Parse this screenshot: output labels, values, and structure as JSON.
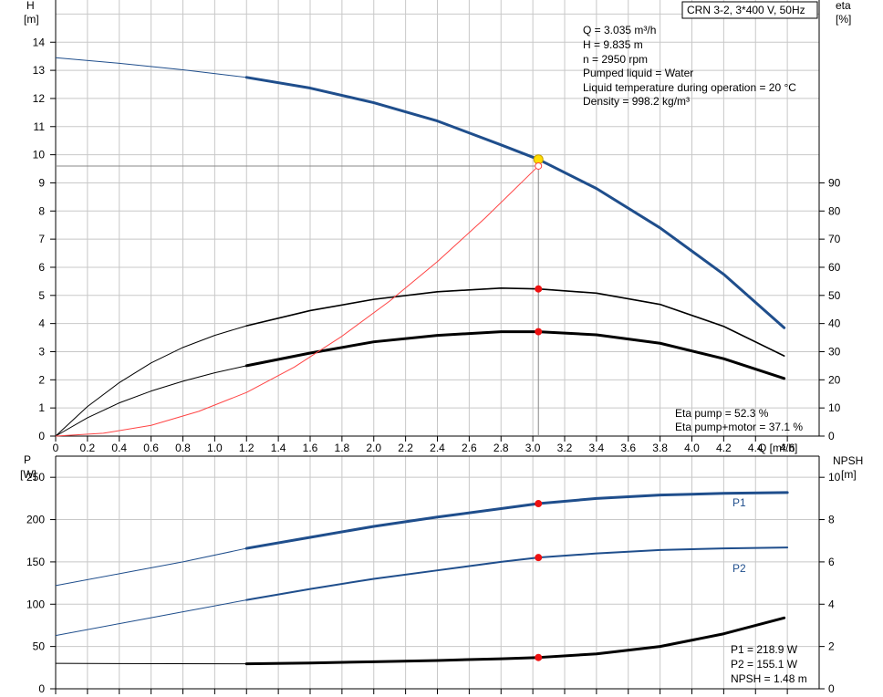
{
  "pump_title": "CRN 3-2, 3*400 V, 50Hz",
  "info_lines": [
    "Q = 3.035 m³/h",
    "H = 9.835 m",
    "n = 2950 rpm",
    "Pumped liquid = Water",
    "Liquid temperature during operation = 20 °C",
    "Density = 998.2 kg/m³"
  ],
  "eta_readout": [
    "Eta pump = 52.3 %",
    "Eta pump+motor = 37.1 %"
  ],
  "power_readout": [
    "P1 = 218.9 W",
    "P2 = 155.1 W",
    "NPSH = 1.48 m"
  ],
  "colors": {
    "head": "#1f4e8c",
    "power": "#1f4e8c",
    "system": "#ff4444",
    "marker": "#ee1111",
    "duty": "#ffdd00",
    "grid": "#c8c8c8"
  },
  "chart_data": [
    {
      "type": "line",
      "axes": {
        "x": {
          "label": "Q [m³/h]",
          "range": [
            0,
            4.8
          ],
          "ticks": [
            "0",
            "0.2",
            "0.4",
            "0.6",
            "0.8",
            "1.0",
            "1.2",
            "1.4",
            "1.6",
            "1.8",
            "2.0",
            "2.2",
            "2.4",
            "2.6",
            "2.8",
            "3.0",
            "3.2",
            "3.4",
            "3.6",
            "3.8",
            "4.0",
            "4.2",
            "4.4",
            "4.6"
          ]
        },
        "y_left": {
          "label": [
            "H",
            "[m]"
          ],
          "range": [
            0,
            15.5
          ],
          "ticks": [
            "0",
            "1",
            "2",
            "3",
            "4",
            "5",
            "6",
            "7",
            "8",
            "9",
            "10",
            "11",
            "12",
            "13",
            "14"
          ]
        },
        "y_right": {
          "label": [
            "eta",
            "[%]"
          ],
          "range": [
            0,
            155
          ],
          "ticks": [
            "0",
            "10",
            "20",
            "30",
            "40",
            "50",
            "60",
            "70",
            "80",
            "90"
          ]
        }
      },
      "grid": true,
      "series": [
        {
          "id": "head",
          "axis": "left",
          "x": [
            0,
            0.4,
            0.8,
            1.2,
            1.6,
            2.0,
            2.4,
            2.8,
            3.035,
            3.4,
            3.8,
            4.2,
            4.58
          ],
          "y": [
            13.45,
            13.25,
            13.02,
            12.75,
            12.37,
            11.85,
            11.2,
            10.35,
            9.835,
            8.8,
            7.4,
            5.75,
            3.85
          ]
        },
        {
          "id": "eta-pump",
          "axis": "right",
          "x": [
            0,
            0.2,
            0.4,
            0.6,
            0.8,
            1.0,
            1.2,
            1.6,
            2.0,
            2.4,
            2.8,
            3.035,
            3.4,
            3.8,
            4.2,
            4.58
          ],
          "y": [
            0,
            10.5,
            19,
            26,
            31.5,
            35.8,
            39.2,
            44.6,
            48.6,
            51.3,
            52.6,
            52.3,
            50.8,
            46.8,
            39,
            28.5
          ]
        },
        {
          "id": "eta-pump-motor",
          "axis": "right",
          "x": [
            0,
            0.2,
            0.4,
            0.6,
            0.8,
            1.0,
            1.2,
            1.6,
            2.0,
            2.4,
            2.8,
            3.035,
            3.4,
            3.8,
            4.2,
            4.58
          ],
          "y": [
            0,
            6.5,
            11.8,
            16,
            19.5,
            22.5,
            25,
            29.5,
            33.5,
            35.8,
            37.1,
            37.1,
            36,
            33,
            27.5,
            20.5
          ]
        },
        {
          "id": "system-curve",
          "axis": "left",
          "x": [
            0,
            0.3,
            0.6,
            0.9,
            1.2,
            1.5,
            1.8,
            2.1,
            2.4,
            2.7,
            3.035
          ],
          "y": [
            0,
            0.1,
            0.38,
            0.88,
            1.55,
            2.45,
            3.55,
            4.8,
            6.2,
            7.75,
            9.6
          ]
        }
      ],
      "markers": [
        {
          "id": "duty-point",
          "x": 3.035,
          "y": 9.835,
          "axis": "left"
        },
        {
          "id": "system-point",
          "x": 3.035,
          "y": 9.6,
          "axis": "left"
        },
        {
          "id": "eta-pump-point",
          "x": 3.035,
          "y": 52.3,
          "axis": "right"
        },
        {
          "id": "eta-pump-motor-point",
          "x": 3.035,
          "y": 37.1,
          "axis": "right"
        }
      ],
      "guides": {
        "q": 3.035,
        "h": 9.6
      }
    },
    {
      "type": "line",
      "axes": {
        "x": {
          "range": [
            0,
            4.8
          ]
        },
        "y_left": {
          "label": [
            "P",
            "[W]"
          ],
          "range": [
            0,
            275
          ],
          "ticks": [
            "0",
            "50",
            "100",
            "150",
            "200",
            "250"
          ]
        },
        "y_right": {
          "label": [
            "NPSH",
            "[m]"
          ],
          "range": [
            0,
            11
          ],
          "ticks": [
            "0",
            "2",
            "4",
            "6",
            "8",
            "10"
          ]
        }
      },
      "grid": true,
      "series": [
        {
          "id": "p1",
          "name": "P1",
          "axis": "left",
          "x": [
            0,
            0.4,
            0.8,
            1.2,
            1.6,
            2.0,
            2.4,
            2.8,
            3.035,
            3.4,
            3.8,
            4.2,
            4.6
          ],
          "y": [
            122,
            136,
            150,
            166,
            179,
            192,
            203,
            213,
            218.9,
            225,
            229,
            231,
            232
          ]
        },
        {
          "id": "p2",
          "name": "P2",
          "axis": "left",
          "x": [
            0,
            0.4,
            0.8,
            1.2,
            1.6,
            2.0,
            2.4,
            2.8,
            3.035,
            3.4,
            3.8,
            4.2,
            4.6
          ],
          "y": [
            63,
            77,
            91,
            105,
            118,
            130,
            140,
            150,
            155.1,
            160,
            164,
            166,
            167
          ]
        },
        {
          "id": "npsh",
          "axis": "right",
          "x": [
            0,
            1.2,
            1.6,
            2.0,
            2.4,
            2.8,
            3.035,
            3.4,
            3.8,
            4.2,
            4.58
          ],
          "y": [
            1.2,
            1.18,
            1.22,
            1.28,
            1.34,
            1.42,
            1.48,
            1.65,
            2.0,
            2.6,
            3.35
          ]
        }
      ],
      "markers": [
        {
          "id": "p1-point",
          "x": 3.035,
          "y": 218.9,
          "axis": "left"
        },
        {
          "id": "p2-point",
          "x": 3.035,
          "y": 155.1,
          "axis": "left"
        },
        {
          "id": "npsh-point",
          "x": 3.035,
          "y": 1.48,
          "axis": "right"
        }
      ]
    }
  ]
}
